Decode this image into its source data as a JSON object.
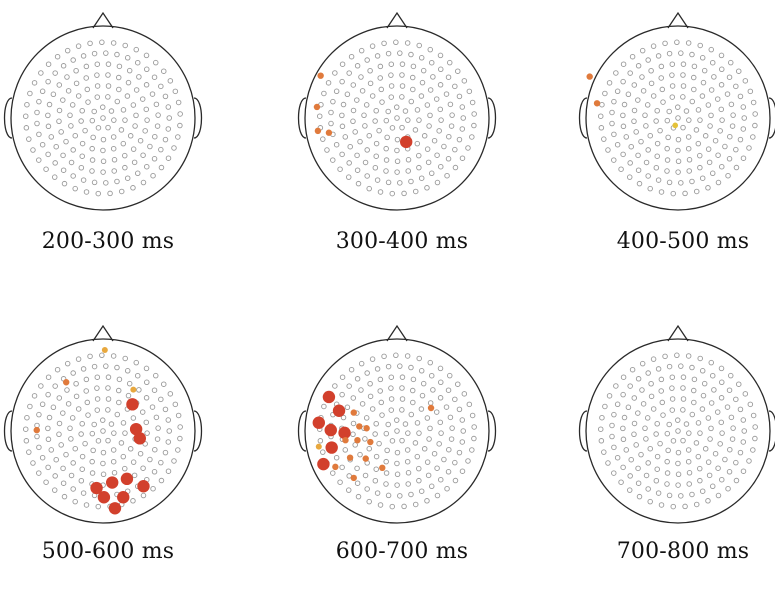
{
  "colors": {
    "outline": "#2a2a2a",
    "electrode": "#9a9a9a",
    "strong": "#d2402c",
    "medium": "#e07a3c",
    "weak": "#e8a83e",
    "faint": "#e4c23a"
  },
  "panels": [
    {
      "label": "200-300 ms",
      "markers": []
    },
    {
      "label": "300-400 ms",
      "markers": [
        {
          "u": -0.83,
          "v": -0.46,
          "level": "medium"
        },
        {
          "u": -0.87,
          "v": -0.12,
          "level": "medium"
        },
        {
          "u": -0.86,
          "v": 0.14,
          "level": "medium"
        },
        {
          "u": -0.74,
          "v": 0.16,
          "level": "medium"
        },
        {
          "u": 0.1,
          "v": 0.26,
          "level": "strong"
        }
      ]
    },
    {
      "label": "400-500 ms",
      "markers": [
        {
          "u": -0.96,
          "v": -0.45,
          "level": "medium"
        },
        {
          "u": -0.88,
          "v": -0.16,
          "level": "medium"
        },
        {
          "u": -0.03,
          "v": 0.08,
          "level": "faint"
        }
      ]
    },
    {
      "label": "500-600 ms",
      "markers": [
        {
          "u": 0.02,
          "v": -0.88,
          "level": "weak"
        },
        {
          "u": -0.4,
          "v": -0.53,
          "level": "medium"
        },
        {
          "u": 0.33,
          "v": -0.45,
          "level": "weak"
        },
        {
          "u": 0.32,
          "v": -0.29,
          "level": "strong"
        },
        {
          "u": -0.72,
          "v": -0.01,
          "level": "medium"
        },
        {
          "u": 0.36,
          "v": -0.02,
          "level": "strong"
        },
        {
          "u": 0.4,
          "v": 0.08,
          "level": "strong"
        },
        {
          "u": -0.07,
          "v": 0.62,
          "level": "strong"
        },
        {
          "u": 0.1,
          "v": 0.56,
          "level": "strong"
        },
        {
          "u": 0.26,
          "v": 0.52,
          "level": "strong"
        },
        {
          "u": 0.44,
          "v": 0.6,
          "level": "strong"
        },
        {
          "u": 0.01,
          "v": 0.72,
          "level": "strong"
        },
        {
          "u": 0.22,
          "v": 0.72,
          "level": "strong"
        },
        {
          "u": 0.13,
          "v": 0.84,
          "level": "strong"
        }
      ]
    },
    {
      "label": "600-700 ms",
      "markers": [
        {
          "u": -0.74,
          "v": -0.37,
          "level": "strong"
        },
        {
          "u": -0.63,
          "v": -0.22,
          "level": "strong"
        },
        {
          "u": -0.47,
          "v": -0.2,
          "level": "medium"
        },
        {
          "u": 0.37,
          "v": -0.25,
          "level": "medium"
        },
        {
          "u": -0.85,
          "v": -0.09,
          "level": "strong"
        },
        {
          "u": -0.72,
          "v": -0.01,
          "level": "strong"
        },
        {
          "u": -0.57,
          "v": 0.02,
          "level": "strong"
        },
        {
          "u": -0.41,
          "v": -0.05,
          "level": "medium"
        },
        {
          "u": -0.33,
          "v": -0.03,
          "level": "medium"
        },
        {
          "u": -0.56,
          "v": 0.1,
          "level": "medium"
        },
        {
          "u": -0.43,
          "v": 0.1,
          "level": "medium"
        },
        {
          "u": -0.29,
          "v": 0.12,
          "level": "medium"
        },
        {
          "u": -0.85,
          "v": 0.17,
          "level": "weak"
        },
        {
          "u": -0.71,
          "v": 0.18,
          "level": "strong"
        },
        {
          "u": -0.51,
          "v": 0.29,
          "level": "medium"
        },
        {
          "u": -0.34,
          "v": 0.3,
          "level": "medium"
        },
        {
          "u": -0.8,
          "v": 0.36,
          "level": "strong"
        },
        {
          "u": -0.67,
          "v": 0.39,
          "level": "medium"
        },
        {
          "u": -0.16,
          "v": 0.4,
          "level": "medium"
        },
        {
          "u": -0.47,
          "v": 0.51,
          "level": "medium"
        }
      ]
    },
    {
      "label": "700-800 ms",
      "markers": []
    }
  ]
}
